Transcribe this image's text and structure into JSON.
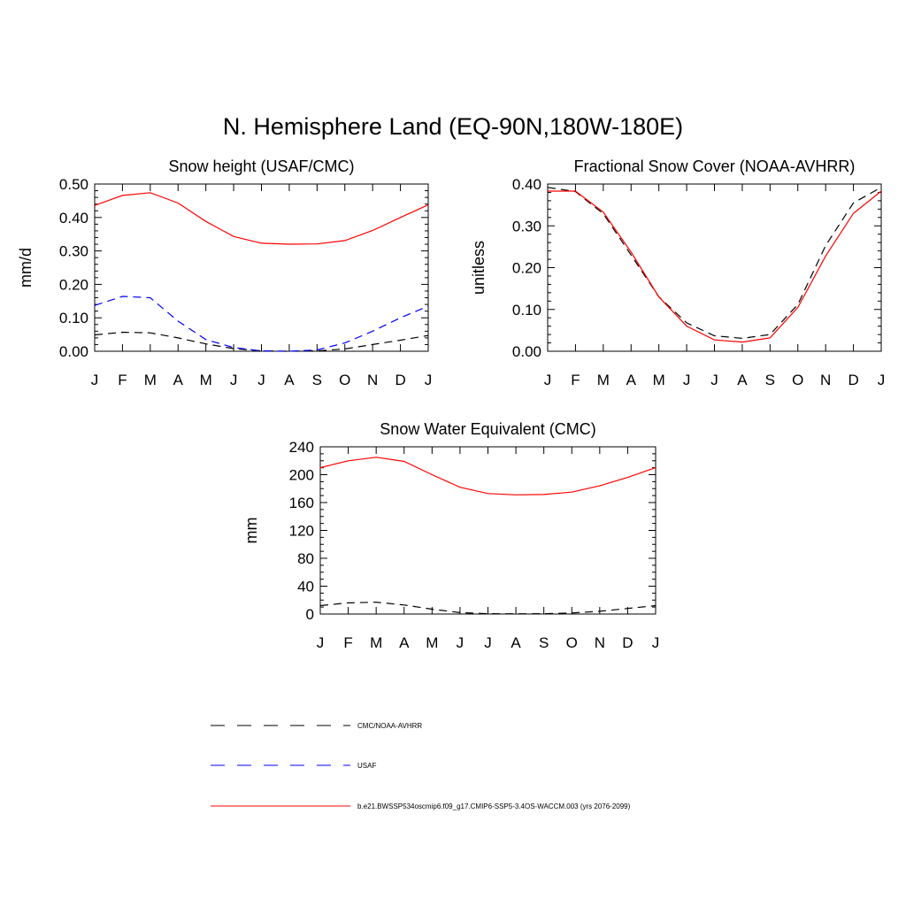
{
  "title": "N. Hemisphere Land (EQ-90N,180W-180E)",
  "legend": {
    "entries": [
      {
        "label": "CMC/NOAA-AVHRR",
        "color": "#000000",
        "dash": "dashed"
      },
      {
        "label": "USAF",
        "color": "#0000ff",
        "dash": "dashed"
      },
      {
        "label": "b.e21.BWSSP534oscmip6.f09_g17.CMIP6-SSP5-3.4OS-WACCM.003 (yrs 2076-2099)",
        "color": "#ff0000",
        "dash": "solid"
      }
    ]
  },
  "chart_data": [
    {
      "type": "line",
      "title": "Snow height (USAF/CMC)",
      "ylabel": "mm/d",
      "xlabel": "",
      "categories": [
        "J",
        "F",
        "M",
        "A",
        "M",
        "J",
        "J",
        "A",
        "S",
        "O",
        "N",
        "D",
        "J"
      ],
      "ylim": [
        0,
        0.5
      ],
      "yticks": [
        "0.00",
        "0.10",
        "0.20",
        "0.30",
        "0.40",
        "0.50"
      ],
      "series": [
        {
          "name": "CMC/NOAA-AVHRR",
          "color": "#000000",
          "dash": "dashed",
          "values": [
            0.049,
            0.057,
            0.055,
            0.04,
            0.022,
            0.008,
            0.001,
            0.0,
            0.001,
            0.007,
            0.02,
            0.033,
            0.047
          ]
        },
        {
          "name": "USAF",
          "color": "#0000ff",
          "dash": "dashed",
          "values": [
            0.137,
            0.164,
            0.16,
            0.09,
            0.035,
            0.011,
            0.001,
            0.0,
            0.004,
            0.025,
            0.06,
            0.1,
            0.135
          ]
        },
        {
          "name": "b.e21.BWSSP534oscmip6.f09_g17.CMIP6-SSP5-3.4OS-WACCM.003 (yrs 2076-2099)",
          "color": "#ff0000",
          "dash": "solid",
          "values": [
            0.436,
            0.466,
            0.474,
            0.443,
            0.388,
            0.343,
            0.323,
            0.32,
            0.321,
            0.331,
            0.361,
            0.4,
            0.438
          ]
        }
      ]
    },
    {
      "type": "line",
      "title": "Fractional Snow Cover (NOAA-AVHRR)",
      "ylabel": "unitless",
      "xlabel": "",
      "categories": [
        "J",
        "F",
        "M",
        "A",
        "M",
        "J",
        "J",
        "A",
        "S",
        "O",
        "N",
        "D",
        "J"
      ],
      "ylim": [
        0,
        0.4
      ],
      "yticks": [
        "0.00",
        "0.10",
        "0.20",
        "0.30",
        "0.40"
      ],
      "series": [
        {
          "name": "CMC/NOAA-AVHRR",
          "color": "#000000",
          "dash": "dashed",
          "values": [
            0.392,
            0.382,
            0.329,
            0.23,
            0.13,
            0.068,
            0.037,
            0.031,
            0.04,
            0.112,
            0.253,
            0.355,
            0.392
          ]
        },
        {
          "name": "b.e21.BWSSP534oscmip6.f09_g17.CMIP6-SSP5-3.4OS-WACCM.003 (yrs 2076-2099)",
          "color": "#ff0000",
          "dash": "solid",
          "values": [
            0.383,
            0.383,
            0.333,
            0.237,
            0.13,
            0.06,
            0.027,
            0.022,
            0.032,
            0.105,
            0.228,
            0.33,
            0.383
          ]
        }
      ]
    },
    {
      "type": "line",
      "title": "Snow Water Equivalent (CMC)",
      "ylabel": "mm",
      "xlabel": "",
      "categories": [
        "J",
        "F",
        "M",
        "A",
        "M",
        "J",
        "J",
        "A",
        "S",
        "O",
        "N",
        "D",
        "J"
      ],
      "ylim": [
        0,
        240
      ],
      "yticks": [
        "0",
        "40",
        "80",
        "120",
        "160",
        "200",
        "240"
      ],
      "series": [
        {
          "name": "CMC/NOAA-AVHRR",
          "color": "#000000",
          "dash": "dashed",
          "values": [
            12,
            16,
            17,
            13,
            7,
            2,
            0.5,
            0.2,
            0.5,
            1.5,
            4,
            8,
            12
          ]
        },
        {
          "name": "b.e21.BWSSP534oscmip6.f09_g17.CMIP6-SSP5-3.4OS-WACCM.003 (yrs 2076-2099)",
          "color": "#ff0000",
          "dash": "solid",
          "values": [
            210,
            220,
            225,
            219,
            200,
            182,
            173,
            171,
            171.5,
            175,
            184,
            196,
            210
          ]
        }
      ]
    }
  ]
}
